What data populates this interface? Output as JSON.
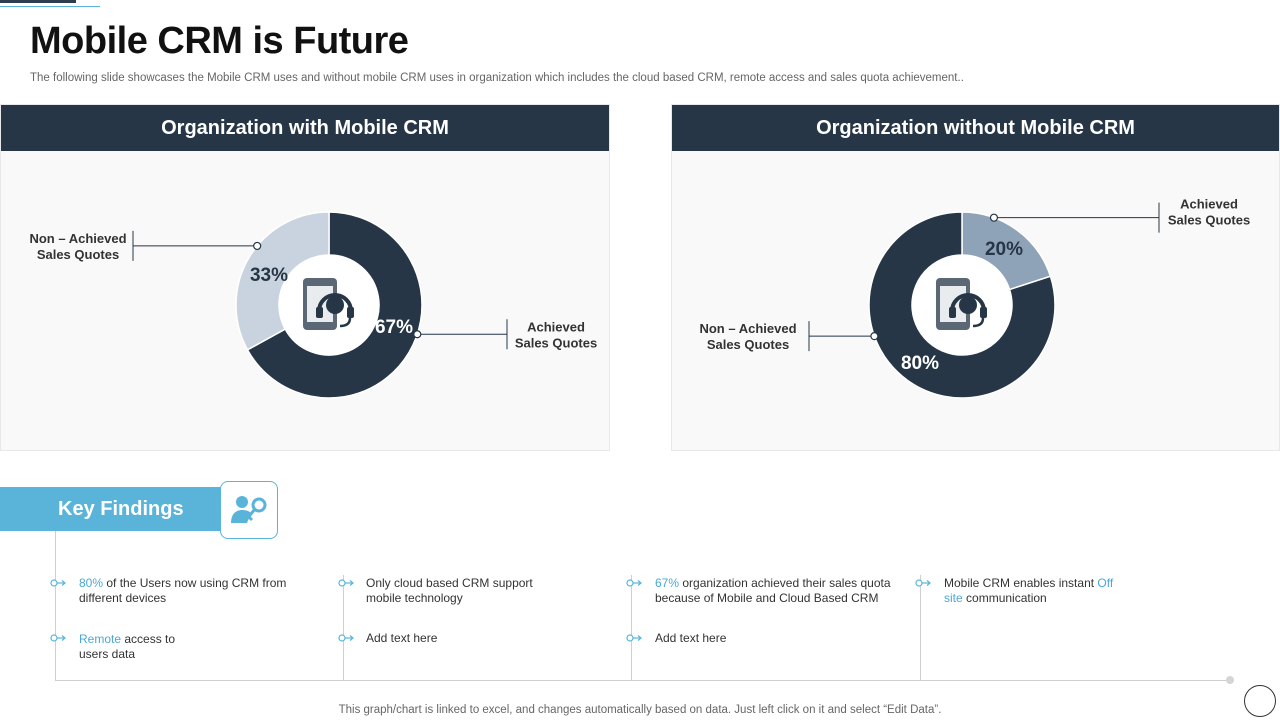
{
  "title": "Mobile CRM is Future",
  "subtitle": "The following slide showcases the Mobile CRM uses and without mobile CRM uses in organization which includes the cloud based CRM, remote access and sales quota achievement..",
  "colors": {
    "dark": "#263646",
    "light": "#c9d3df",
    "mid": "#8fa3b8",
    "accent": "#5ab4da"
  },
  "chart_data": [
    {
      "type": "pie",
      "title": "Organization with Mobile CRM",
      "categories": [
        "Achieved Sales Quotes",
        "Non – Achieved Sales Quotes"
      ],
      "values": [
        67,
        33
      ],
      "labels": [
        "67%",
        "33%"
      ]
    },
    {
      "type": "pie",
      "title": "Organization without Mobile CRM",
      "categories": [
        "Achieved Sales Quotes",
        "Non – Achieved Sales Quotes"
      ],
      "values": [
        20,
        80
      ],
      "labels": [
        "20%",
        "80%"
      ]
    }
  ],
  "charts": {
    "left": {
      "label_achieved": [
        "Achieved",
        "Sales Quotes"
      ],
      "label_non": [
        "Non – Achieved",
        "Sales Quotes"
      ]
    },
    "right": {
      "label_achieved": [
        "Achieved",
        "Sales Quotes"
      ],
      "label_non": [
        "Non – Achieved",
        "Sales Quotes"
      ]
    }
  },
  "key_findings": {
    "heading": "Key Findings",
    "items": [
      {
        "hl": "80%",
        "text": " of the Users now using CRM from different devices"
      },
      {
        "hl": "",
        "text": "Only cloud based CRM support mobile technology"
      },
      {
        "hl": "67%",
        "text": " organization achieved their sales quota because of Mobile and Cloud Based CRM"
      },
      {
        "pre": "Mobile CRM enables instant ",
        "hl": "Off site",
        "text": " communication"
      },
      {
        "hl": "Remote",
        "text": " access to users data"
      },
      {
        "hl": "",
        "text": "Add text here"
      },
      {
        "hl": "",
        "text": "Add text here"
      }
    ]
  },
  "footer": "This graph/chart is linked to excel,  and changes automatically based on data. Just left click on it and select “Edit Data”."
}
